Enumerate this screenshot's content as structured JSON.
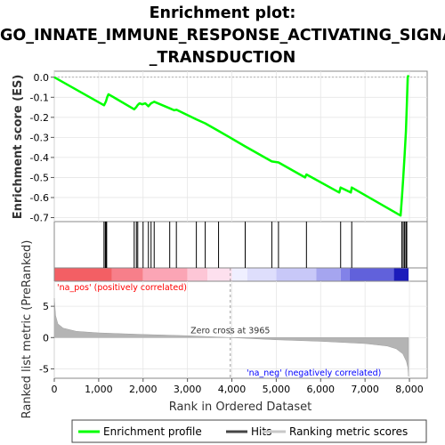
{
  "chart_data": {
    "type": "line",
    "title_lines": [
      "Enrichment plot:",
      "GO_INNATE_IMMUNE_RESPONSE_ACTIVATING_SIGNAL",
      "_TRANSDUCTION"
    ],
    "es_ylabel": "Enrichment score (ES)",
    "es_ylim": [
      -0.72,
      0.03
    ],
    "es_yticks": [
      "0.0",
      "-0.1",
      "-0.2",
      "-0.3",
      "-0.4",
      "-0.5",
      "-0.6",
      "-0.7"
    ],
    "es_ytick_values": [
      0.0,
      -0.1,
      -0.2,
      -0.3,
      -0.4,
      -0.5,
      -0.6,
      -0.7
    ],
    "rank_ylabel": "Ranked list metric (PreRanked)",
    "rank_ylim": [
      -6.5,
      9.0
    ],
    "rank_yticks": [
      "5",
      "0",
      "-5"
    ],
    "rank_ytick_values": [
      5,
      0,
      -5
    ],
    "xlabel": "Rank in Ordered Dataset",
    "xlim": [
      0,
      8400
    ],
    "xticks": [
      "0",
      "1,000",
      "2,000",
      "3,000",
      "4,000",
      "5,000",
      "6,000",
      "7,000",
      "8,000"
    ],
    "xtick_values": [
      0,
      1000,
      2000,
      3000,
      4000,
      5000,
      6000,
      7000,
      8000
    ],
    "zero_cross_label": "Zero cross at 3965",
    "zero_cross": 3965,
    "pos_label": "'na_pos' (positively correlated)",
    "neg_label": "'na_neg' (negatively correlated)",
    "series": [
      {
        "name": "Enrichment profile",
        "color": "#00ff00",
        "points": [
          [
            0,
            0.0
          ],
          [
            1120,
            -0.14
          ],
          [
            1165,
            -0.12
          ],
          [
            1190,
            -0.1
          ],
          [
            1220,
            -0.085
          ],
          [
            1800,
            -0.16
          ],
          [
            1850,
            -0.148
          ],
          [
            1880,
            -0.138
          ],
          [
            1920,
            -0.13
          ],
          [
            1980,
            -0.135
          ],
          [
            2050,
            -0.13
          ],
          [
            2120,
            -0.145
          ],
          [
            2180,
            -0.13
          ],
          [
            2250,
            -0.122
          ],
          [
            2600,
            -0.155
          ],
          [
            2700,
            -0.165
          ],
          [
            2750,
            -0.162
          ],
          [
            3200,
            -0.21
          ],
          [
            3400,
            -0.23
          ],
          [
            3700,
            -0.268
          ],
          [
            4300,
            -0.345
          ],
          [
            4900,
            -0.42
          ],
          [
            5050,
            -0.425
          ],
          [
            5650,
            -0.5
          ],
          [
            5680,
            -0.485
          ],
          [
            6420,
            -0.575
          ],
          [
            6450,
            -0.55
          ],
          [
            6680,
            -0.575
          ],
          [
            6700,
            -0.55
          ],
          [
            7800,
            -0.69
          ],
          [
            7830,
            -0.6
          ],
          [
            7860,
            -0.5
          ],
          [
            7890,
            -0.39
          ],
          [
            7920,
            -0.27
          ],
          [
            7940,
            -0.14
          ],
          [
            7960,
            0.0
          ],
          [
            7980,
            0.01
          ]
        ]
      }
    ],
    "hits": [
      1120,
      1150,
      1165,
      1180,
      1800,
      1850,
      1880,
      2000,
      2120,
      2180,
      2250,
      2600,
      2750,
      3200,
      3400,
      3700,
      4300,
      4900,
      5050,
      5680,
      6450,
      6700,
      7830,
      7860,
      7890,
      7920,
      7940
    ],
    "ranked_metric_profile": [
      [
        0,
        6.3
      ],
      [
        30,
        3.5
      ],
      [
        80,
        2.2
      ],
      [
        200,
        1.5
      ],
      [
        500,
        1.0
      ],
      [
        1000,
        0.75
      ],
      [
        2000,
        0.5
      ],
      [
        3000,
        0.3
      ],
      [
        3965,
        0.0
      ],
      [
        5000,
        -0.35
      ],
      [
        6000,
        -0.6
      ],
      [
        7000,
        -0.95
      ],
      [
        7500,
        -1.35
      ],
      [
        7700,
        -1.8
      ],
      [
        7850,
        -2.6
      ],
      [
        7930,
        -3.8
      ],
      [
        7965,
        -4.8
      ],
      [
        7980,
        -6.2
      ]
    ],
    "color_band": [
      {
        "x0": 0,
        "x1": 1300,
        "color": "#f35f64"
      },
      {
        "x0": 1300,
        "x1": 2000,
        "color": "#f77f8a"
      },
      {
        "x0": 2000,
        "x1": 3000,
        "color": "#fba5b5"
      },
      {
        "x0": 3000,
        "x1": 3450,
        "color": "#fdc6d6"
      },
      {
        "x0": 3450,
        "x1": 4000,
        "color": "#fde0ee"
      },
      {
        "x0": 4000,
        "x1": 4350,
        "color": "#efefff"
      },
      {
        "x0": 4350,
        "x1": 5000,
        "color": "#dedefc"
      },
      {
        "x0": 5000,
        "x1": 5900,
        "color": "#c8c8f8"
      },
      {
        "x0": 5900,
        "x1": 6450,
        "color": "#a5a5ef"
      },
      {
        "x0": 6450,
        "x1": 6650,
        "color": "#8282e8"
      },
      {
        "x0": 6650,
        "x1": 7650,
        "color": "#6161db"
      },
      {
        "x0": 7650,
        "x1": 7980,
        "color": "#1c1cbb"
      }
    ]
  },
  "legend": {
    "items": [
      {
        "label": "Enrichment profile",
        "color": "#00ff00"
      },
      {
        "label": "Hits",
        "color": "#000000"
      },
      {
        "label": "Ranking metric scores",
        "color": "#c8c8c8"
      }
    ]
  }
}
